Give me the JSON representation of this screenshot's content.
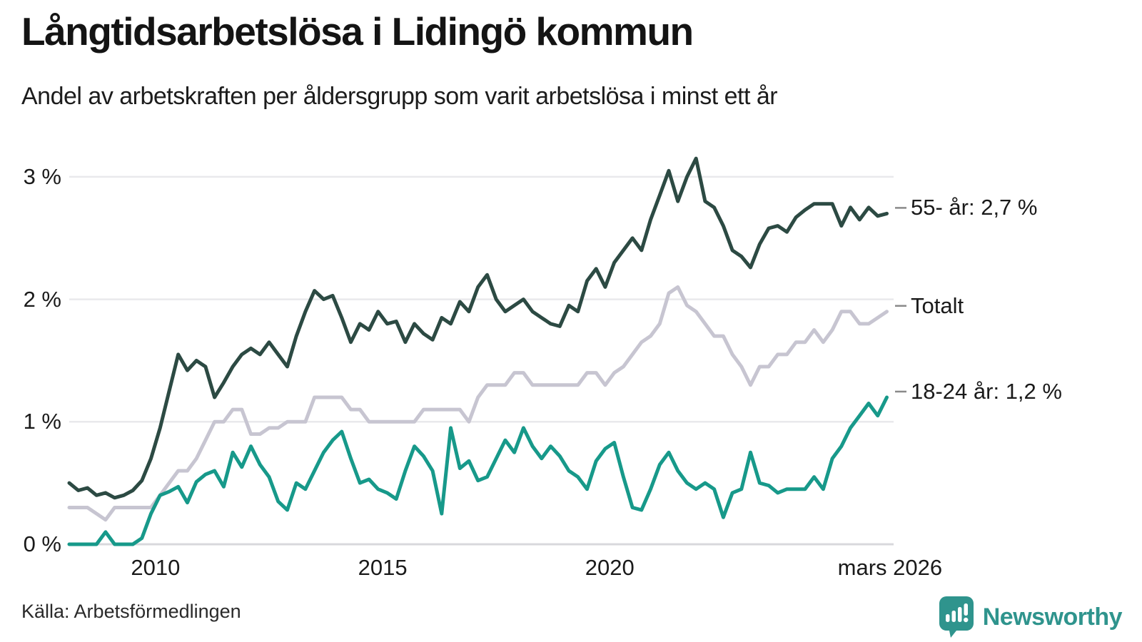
{
  "header": {
    "title": "Långtidsarbetslösa i Lidingö kommun",
    "subtitle": "Andel av arbetskraften per åldersgrupp som varit arbetslösa i minst ett år"
  },
  "footer": {
    "source": "Källa: Arbetsförmedlingen",
    "logo_text": "Newsworthy",
    "logo_color": "#2f948d"
  },
  "chart_data": {
    "type": "line",
    "title": "Långtidsarbetslösa i Lidingö kommun",
    "subtitle": "Andel av arbetskraften per åldersgrupp som varit arbetslösa i minst ett år",
    "unit": "% av arbetskraften",
    "xlim": [
      2008.1,
      2026.25
    ],
    "ylim": [
      0,
      3.3
    ],
    "grid": "horizontal",
    "legend_position": "right-end-labels",
    "yticks": [
      {
        "value": 0,
        "label": "0 %"
      },
      {
        "value": 1,
        "label": "1 %"
      },
      {
        "value": 2,
        "label": "2 %"
      },
      {
        "value": 3,
        "label": "3 %"
      }
    ],
    "xticks": [
      {
        "value": 2010,
        "label": "2010"
      },
      {
        "value": 2015,
        "label": "2015"
      },
      {
        "value": 2020,
        "label": "2020"
      },
      {
        "value": 2026.17,
        "label": "mars 2026"
      }
    ],
    "grid_color": "#e9e9ec",
    "baseline_color": "#d8d8dc",
    "connector_color": "#8a8a8a",
    "x": [
      2008.1,
      2008.3,
      2008.5,
      2008.7,
      2008.9,
      2009.1,
      2009.3,
      2009.5,
      2009.7,
      2009.9,
      2010.1,
      2010.3,
      2010.5,
      2010.7,
      2010.9,
      2011.1,
      2011.3,
      2011.5,
      2011.7,
      2011.9,
      2012.1,
      2012.3,
      2012.5,
      2012.7,
      2012.9,
      2013.1,
      2013.3,
      2013.5,
      2013.7,
      2013.9,
      2014.1,
      2014.3,
      2014.5,
      2014.7,
      2014.9,
      2015.1,
      2015.3,
      2015.5,
      2015.7,
      2015.9,
      2016.1,
      2016.3,
      2016.5,
      2016.7,
      2016.9,
      2017.1,
      2017.3,
      2017.5,
      2017.7,
      2017.9,
      2018.1,
      2018.3,
      2018.5,
      2018.7,
      2018.9,
      2019.1,
      2019.3,
      2019.5,
      2019.7,
      2019.9,
      2020.1,
      2020.3,
      2020.5,
      2020.7,
      2020.9,
      2021.1,
      2021.3,
      2021.5,
      2021.7,
      2021.9,
      2022.1,
      2022.3,
      2022.5,
      2022.7,
      2022.9,
      2023.1,
      2023.3,
      2023.5,
      2023.7,
      2023.9,
      2024.1,
      2024.3,
      2024.5,
      2024.7,
      2024.9,
      2025.1,
      2025.3,
      2025.5,
      2025.7,
      2025.9,
      2026.1
    ],
    "series": [
      {
        "name": "55- år",
        "end_label": "55- år: 2,7 %",
        "last_value_label": "2,7 %",
        "color": "#2c4a43",
        "values": [
          0.5,
          0.44,
          0.46,
          0.4,
          0.42,
          0.38,
          0.4,
          0.44,
          0.52,
          0.7,
          0.95,
          1.25,
          1.55,
          1.42,
          1.5,
          1.45,
          1.2,
          1.32,
          1.45,
          1.55,
          1.6,
          1.55,
          1.65,
          1.55,
          1.45,
          1.7,
          1.9,
          2.07,
          2.0,
          2.03,
          1.85,
          1.65,
          1.8,
          1.75,
          1.9,
          1.8,
          1.82,
          1.65,
          1.8,
          1.72,
          1.67,
          1.85,
          1.8,
          1.98,
          1.9,
          2.1,
          2.2,
          2.0,
          1.9,
          1.95,
          2.0,
          1.9,
          1.85,
          1.8,
          1.78,
          1.95,
          1.9,
          2.15,
          2.25,
          2.1,
          2.3,
          2.4,
          2.5,
          2.4,
          2.65,
          2.85,
          3.05,
          2.8,
          3.0,
          3.15,
          2.8,
          2.75,
          2.6,
          2.4,
          2.35,
          2.26,
          2.45,
          2.58,
          2.6,
          2.55,
          2.67,
          2.73,
          2.78,
          2.78,
          2.78,
          2.6,
          2.75,
          2.65,
          2.75,
          2.68,
          2.7
        ]
      },
      {
        "name": "Totalt",
        "end_label": "Totalt",
        "last_value_label": "",
        "color": "#c7c5d1",
        "values": [
          0.3,
          0.3,
          0.3,
          0.25,
          0.2,
          0.3,
          0.3,
          0.3,
          0.3,
          0.3,
          0.4,
          0.5,
          0.6,
          0.6,
          0.7,
          0.85,
          1.0,
          1.0,
          1.1,
          1.1,
          0.9,
          0.9,
          0.95,
          0.95,
          1.0,
          1.0,
          1.0,
          1.2,
          1.2,
          1.2,
          1.2,
          1.1,
          1.1,
          1.0,
          1.0,
          1.0,
          1.0,
          1.0,
          1.0,
          1.1,
          1.1,
          1.1,
          1.1,
          1.1,
          1.0,
          1.2,
          1.3,
          1.3,
          1.3,
          1.4,
          1.4,
          1.3,
          1.3,
          1.3,
          1.3,
          1.3,
          1.3,
          1.4,
          1.4,
          1.3,
          1.4,
          1.45,
          1.55,
          1.65,
          1.7,
          1.8,
          2.05,
          2.1,
          1.95,
          1.9,
          1.8,
          1.7,
          1.7,
          1.55,
          1.45,
          1.3,
          1.45,
          1.45,
          1.55,
          1.55,
          1.65,
          1.65,
          1.75,
          1.65,
          1.75,
          1.9,
          1.9,
          1.8,
          1.8,
          1.85,
          1.9
        ]
      },
      {
        "name": "18-24 år",
        "end_label": "18-24 år: 1,2 %",
        "last_value_label": "1,2 %",
        "color": "#17998a",
        "values": [
          0.0,
          0.0,
          0.0,
          0.0,
          0.1,
          0.0,
          0.0,
          0.0,
          0.05,
          0.25,
          0.4,
          0.43,
          0.47,
          0.34,
          0.51,
          0.57,
          0.6,
          0.47,
          0.75,
          0.63,
          0.8,
          0.65,
          0.55,
          0.35,
          0.28,
          0.5,
          0.45,
          0.6,
          0.75,
          0.85,
          0.92,
          0.7,
          0.5,
          0.53,
          0.45,
          0.42,
          0.37,
          0.6,
          0.8,
          0.72,
          0.6,
          0.25,
          0.95,
          0.62,
          0.68,
          0.52,
          0.55,
          0.7,
          0.85,
          0.75,
          0.95,
          0.8,
          0.7,
          0.8,
          0.72,
          0.6,
          0.55,
          0.45,
          0.68,
          0.78,
          0.83,
          0.55,
          0.3,
          0.28,
          0.45,
          0.65,
          0.75,
          0.6,
          0.5,
          0.45,
          0.5,
          0.45,
          0.22,
          0.42,
          0.45,
          0.75,
          0.5,
          0.48,
          0.42,
          0.45,
          0.45,
          0.45,
          0.55,
          0.45,
          0.7,
          0.8,
          0.95,
          1.05,
          1.15,
          1.05,
          1.2
        ]
      }
    ]
  }
}
